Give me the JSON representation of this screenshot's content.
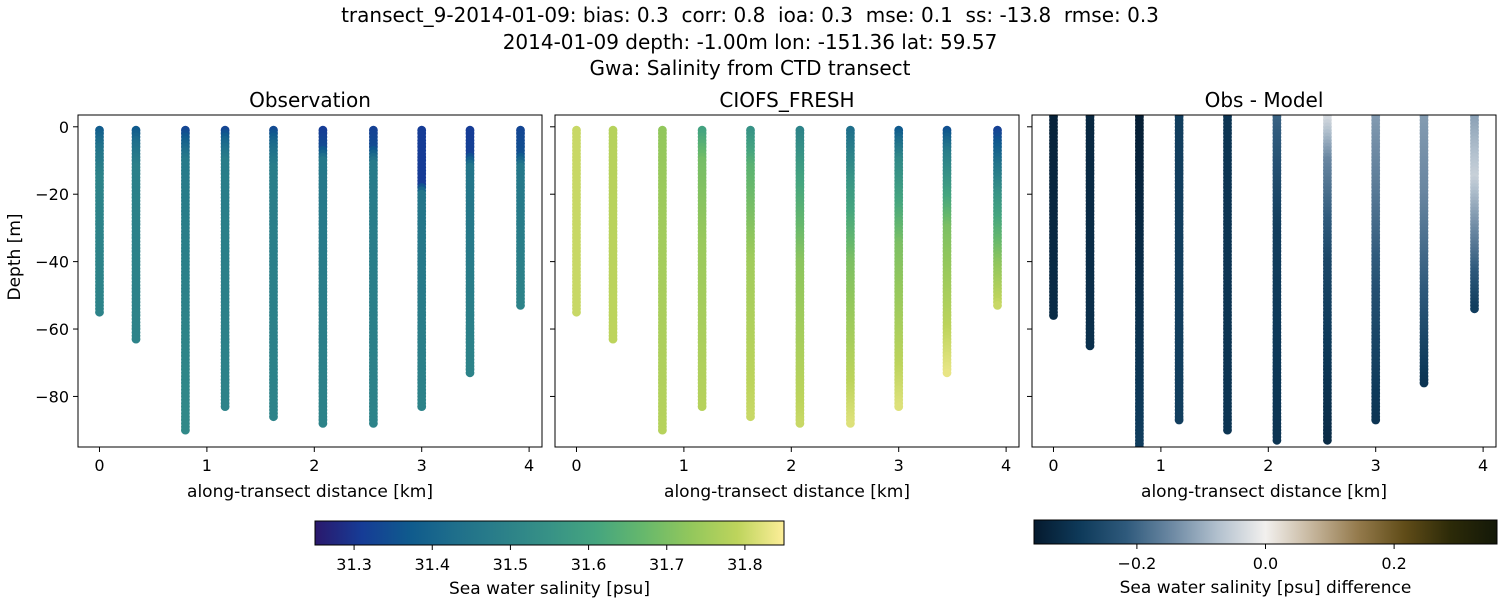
{
  "figure": {
    "title_lines": [
      "transect_9-2014-01-09: bias: 0.3  corr: 0.8  ioa: 0.3  mse: 0.1  ss: -13.8  rmse: 0.3",
      "2014-01-09 depth: -1.00m lon: -151.36 lat: 59.57",
      "Gwa: Salinity from CTD transect"
    ]
  },
  "chart_data": [
    {
      "type": "scatter",
      "title": "Observation",
      "xlabel": "along-transect distance [km]",
      "ylabel": "Depth [m]",
      "xlim": [
        -0.2,
        4.12
      ],
      "ylim": [
        -95,
        3.5
      ],
      "xticks": [
        0,
        1,
        2,
        3,
        4
      ],
      "xtick_labels": [
        "0",
        "1",
        "2",
        "3",
        "4"
      ],
      "yticks": [
        0,
        -20,
        -40,
        -60,
        -80
      ],
      "ytick_labels": [
        "0",
        "−20",
        "−40",
        "−60",
        "−80"
      ],
      "grid": false,
      "colormap": "haline",
      "clim": [
        31.25,
        31.85
      ],
      "stations": [
        {
          "x": 0.0,
          "max_depth": -55,
          "profile": [
            [
              -1,
              31.38
            ],
            [
              -6,
              31.44
            ],
            [
              -15,
              31.5
            ],
            [
              -55,
              31.5
            ]
          ]
        },
        {
          "x": 0.34,
          "max_depth": -63,
          "profile": [
            [
              -1,
              31.37
            ],
            [
              -5,
              31.43
            ],
            [
              -12,
              31.49
            ],
            [
              -63,
              31.5
            ]
          ]
        },
        {
          "x": 0.8,
          "max_depth": -90,
          "profile": [
            [
              -1,
              31.33
            ],
            [
              -4,
              31.38
            ],
            [
              -10,
              31.47
            ],
            [
              -90,
              31.52
            ]
          ]
        },
        {
          "x": 1.17,
          "max_depth": -83,
          "profile": [
            [
              -1,
              31.33
            ],
            [
              -4,
              31.4
            ],
            [
              -10,
              31.48
            ],
            [
              -83,
              31.5
            ]
          ]
        },
        {
          "x": 1.62,
          "max_depth": -86,
          "profile": [
            [
              -1,
              31.34
            ],
            [
              -5,
              31.41
            ],
            [
              -12,
              31.48
            ],
            [
              -86,
              31.5
            ]
          ]
        },
        {
          "x": 2.08,
          "max_depth": -88,
          "profile": [
            [
              -1,
              31.31
            ],
            [
              -6,
              31.34
            ],
            [
              -10,
              31.46
            ],
            [
              -88,
              31.5
            ]
          ]
        },
        {
          "x": 2.55,
          "max_depth": -88,
          "profile": [
            [
              -1,
              31.32
            ],
            [
              -6,
              31.34
            ],
            [
              -11,
              31.47
            ],
            [
              -88,
              31.5
            ]
          ]
        },
        {
          "x": 3.0,
          "max_depth": -83,
          "profile": [
            [
              -1,
              31.31
            ],
            [
              -17,
              31.31
            ],
            [
              -20,
              31.45
            ],
            [
              -83,
              31.5
            ]
          ]
        },
        {
          "x": 3.45,
          "max_depth": -73,
          "profile": [
            [
              -1,
              31.31
            ],
            [
              -8,
              31.32
            ],
            [
              -12,
              31.45
            ],
            [
              -73,
              31.5
            ]
          ]
        },
        {
          "x": 3.92,
          "max_depth": -53,
          "profile": [
            [
              -1,
              31.33
            ],
            [
              -8,
              31.35
            ],
            [
              -12,
              31.46
            ],
            [
              -53,
              31.5
            ]
          ]
        }
      ]
    },
    {
      "type": "scatter",
      "title": "CIOFS_FRESH",
      "xlabel": "along-transect distance [km]",
      "ylabel": "",
      "xlim": [
        -0.2,
        4.12
      ],
      "ylim": [
        -95,
        3.5
      ],
      "xticks": [
        0,
        1,
        2,
        3,
        4
      ],
      "xtick_labels": [
        "0",
        "1",
        "2",
        "3",
        "4"
      ],
      "yticks": [
        0,
        -20,
        -40,
        -60,
        -80
      ],
      "ytick_labels": [],
      "grid": false,
      "colormap": "haline",
      "clim": [
        31.25,
        31.85
      ],
      "stations": [
        {
          "x": 0.0,
          "max_depth": -55,
          "profile": [
            [
              -1,
              31.8
            ],
            [
              -55,
              31.8
            ]
          ]
        },
        {
          "x": 0.34,
          "max_depth": -63,
          "profile": [
            [
              -1,
              31.78
            ],
            [
              -63,
              31.79
            ]
          ]
        },
        {
          "x": 0.8,
          "max_depth": -90,
          "profile": [
            [
              -1,
              31.73
            ],
            [
              -30,
              31.75
            ],
            [
              -90,
              31.78
            ]
          ]
        },
        {
          "x": 1.17,
          "max_depth": -83,
          "profile": [
            [
              -1,
              31.6
            ],
            [
              -10,
              31.69
            ],
            [
              -35,
              31.74
            ],
            [
              -83,
              31.78
            ]
          ]
        },
        {
          "x": 1.62,
          "max_depth": -86,
          "profile": [
            [
              -1,
              31.55
            ],
            [
              -12,
              31.65
            ],
            [
              -40,
              31.75
            ],
            [
              -86,
              31.8
            ]
          ]
        },
        {
          "x": 2.08,
          "max_depth": -88,
          "profile": [
            [
              -1,
              31.5
            ],
            [
              -15,
              31.6
            ],
            [
              -40,
              31.72
            ],
            [
              -88,
              31.8
            ]
          ]
        },
        {
          "x": 2.55,
          "max_depth": -88,
          "profile": [
            [
              -1,
              31.43
            ],
            [
              -15,
              31.55
            ],
            [
              -40,
              31.7
            ],
            [
              -88,
              31.82
            ]
          ]
        },
        {
          "x": 3.0,
          "max_depth": -83,
          "profile": [
            [
              -1,
              31.37
            ],
            [
              -10,
              31.52
            ],
            [
              -35,
              31.7
            ],
            [
              -83,
              31.82
            ]
          ]
        },
        {
          "x": 3.45,
          "max_depth": -73,
          "profile": [
            [
              -1,
              31.35
            ],
            [
              -8,
              31.48
            ],
            [
              -30,
              31.7
            ],
            [
              -73,
              31.83
            ]
          ]
        },
        {
          "x": 3.92,
          "max_depth": -53,
          "profile": [
            [
              -1,
              31.32
            ],
            [
              -8,
              31.4
            ],
            [
              -20,
              31.55
            ],
            [
              -40,
              31.72
            ],
            [
              -53,
              31.8
            ]
          ]
        }
      ]
    },
    {
      "type": "scatter",
      "title": "Obs - Model",
      "xlabel": "along-transect distance [km]",
      "ylabel": "",
      "xlim": [
        -0.2,
        4.12
      ],
      "ylim": [
        -95,
        3.5
      ],
      "xticks": [
        0,
        1,
        2,
        3,
        4
      ],
      "xtick_labels": [
        "0",
        "1",
        "2",
        "3",
        "4"
      ],
      "yticks": [
        0,
        -20,
        -40,
        -60,
        -80
      ],
      "ytick_labels": [],
      "grid": false,
      "colormap": "diff",
      "clim": [
        -0.36,
        0.36
      ],
      "stations": [
        {
          "x": 0.0,
          "max_depth": -56,
          "top": 4,
          "profile": [
            [
              4,
              -0.34
            ],
            [
              -56,
              -0.32
            ]
          ]
        },
        {
          "x": 0.34,
          "max_depth": -65,
          "top": 4,
          "profile": [
            [
              4,
              -0.33
            ],
            [
              -65,
              -0.31
            ]
          ]
        },
        {
          "x": 0.8,
          "max_depth": -96,
          "top": 4,
          "profile": [
            [
              4,
              -0.35
            ],
            [
              -96,
              -0.28
            ]
          ]
        },
        {
          "x": 1.17,
          "max_depth": -87,
          "top": 4,
          "profile": [
            [
              4,
              -0.28
            ],
            [
              -87,
              -0.28
            ]
          ]
        },
        {
          "x": 1.62,
          "max_depth": -90,
          "top": 4,
          "profile": [
            [
              4,
              -0.3
            ],
            [
              -90,
              -0.3
            ]
          ]
        },
        {
          "x": 2.08,
          "max_depth": -93,
          "top": 4,
          "profile": [
            [
              4,
              -0.2
            ],
            [
              -30,
              -0.28
            ],
            [
              -93,
              -0.3
            ]
          ]
        },
        {
          "x": 2.55,
          "max_depth": -93,
          "top": 4,
          "profile": [
            [
              4,
              -0.02
            ],
            [
              -10,
              -0.15
            ],
            [
              -40,
              -0.26
            ],
            [
              -93,
              -0.32
            ]
          ]
        },
        {
          "x": 3.0,
          "max_depth": -87,
          "top": 4,
          "profile": [
            [
              4,
              -0.12
            ],
            [
              -20,
              -0.17
            ],
            [
              -50,
              -0.24
            ],
            [
              -87,
              -0.3
            ]
          ]
        },
        {
          "x": 3.45,
          "max_depth": -76,
          "top": 4,
          "profile": [
            [
              4,
              -0.12
            ],
            [
              -20,
              -0.15
            ],
            [
              -50,
              -0.22
            ],
            [
              -76,
              -0.3
            ]
          ]
        },
        {
          "x": 3.92,
          "max_depth": -54,
          "top": 4,
          "profile": [
            [
              4,
              -0.12
            ],
            [
              -15,
              -0.05
            ],
            [
              -30,
              -0.14
            ],
            [
              -54,
              -0.28
            ]
          ]
        }
      ]
    }
  ],
  "colorbars": [
    {
      "label": "Sea water salinity [psu]",
      "range": [
        31.25,
        31.85
      ],
      "ticks": [
        31.3,
        31.4,
        31.5,
        31.6,
        31.7,
        31.8
      ],
      "tick_labels": [
        "31.3",
        "31.4",
        "31.5",
        "31.6",
        "31.7",
        "31.8"
      ],
      "colormap": "haline"
    },
    {
      "label": "Sea water salinity [psu] difference",
      "range": [
        -0.36,
        0.36
      ],
      "ticks": [
        -0.2,
        0.0,
        0.2
      ],
      "tick_labels": [
        "−0.2",
        "0.0",
        "0.2"
      ],
      "colormap": "diff"
    }
  ],
  "colormaps": {
    "haline": [
      "#2a186c",
      "#163c96",
      "#0f5a8d",
      "#1f6f8b",
      "#2b8089",
      "#379286",
      "#45a57f",
      "#66b86c",
      "#92c75c",
      "#bdd45c",
      "#fdee99"
    ],
    "diff": [
      "#051a2e",
      "#0e3a5a",
      "#2f5a7c",
      "#6e8aa4",
      "#b4c2cf",
      "#f2f0ee",
      "#c6b69d",
      "#947a4c",
      "#604c18",
      "#2c2a08",
      "#131808"
    ]
  }
}
